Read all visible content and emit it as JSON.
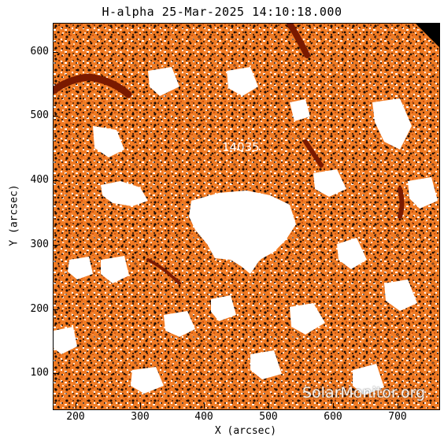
{
  "title": "H-alpha 25-Mar-2025 14:10:18.000",
  "xlabel": "X (arcsec)",
  "ylabel": "Y (arcsec)",
  "x_ticks": [
    "200",
    "300",
    "400",
    "500",
    "600",
    "700"
  ],
  "y_ticks": [
    "600",
    "500",
    "400",
    "300",
    "200",
    "100"
  ],
  "active_region_label": "14035",
  "watermark": "SolarMonitor.org",
  "colors": {
    "chromosphere": "#f07a22",
    "filament": "#7a1a00",
    "background": "#ffffff",
    "mottle": "#1a0a05"
  }
}
